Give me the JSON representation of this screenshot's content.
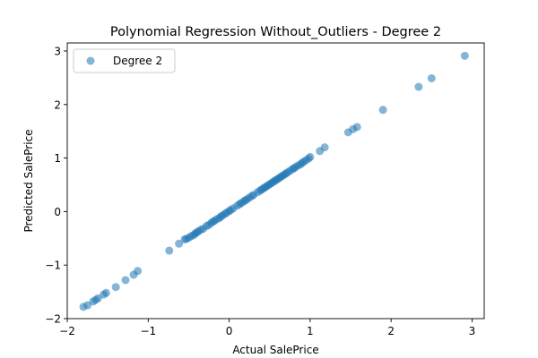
{
  "chart_data": {
    "type": "scatter",
    "title": "Polynomial Regression Without_Outliers - Degree 2",
    "xlabel": "Actual SalePrice",
    "ylabel": "Predicted SalePrice",
    "xlim": [
      -2.0,
      3.15
    ],
    "ylim": [
      -2.0,
      3.15
    ],
    "xticks": [
      -2,
      -1,
      0,
      1,
      2,
      3
    ],
    "yticks": [
      -2,
      -1,
      0,
      1,
      2,
      3
    ],
    "grid": false,
    "legend_position": "upper-left",
    "point_color": "#1f77b4",
    "point_alpha": 0.55,
    "series": [
      {
        "name": "Degree 2",
        "x": [
          -1.8,
          -1.75,
          -1.68,
          -1.65,
          -1.62,
          -1.55,
          -1.52,
          -1.4,
          -1.28,
          -1.18,
          -1.13,
          -0.74,
          -0.62,
          -0.55,
          -0.53,
          -0.5,
          -0.47,
          -0.44,
          -0.42,
          -0.4,
          -0.38,
          -0.35,
          -0.32,
          -0.28,
          -0.25,
          -0.22,
          -0.2,
          -0.18,
          -0.15,
          -0.12,
          -0.1,
          -0.08,
          -0.05,
          -0.03,
          0.0,
          0.02,
          0.05,
          0.1,
          0.13,
          0.15,
          0.18,
          0.2,
          0.22,
          0.25,
          0.28,
          0.3,
          0.35,
          0.38,
          0.4,
          0.42,
          0.44,
          0.46,
          0.48,
          0.5,
          0.52,
          0.54,
          0.56,
          0.58,
          0.6,
          0.62,
          0.64,
          0.66,
          0.68,
          0.7,
          0.72,
          0.75,
          0.78,
          0.8,
          0.82,
          0.85,
          0.88,
          0.9,
          0.92,
          0.95,
          0.98,
          1.0,
          1.12,
          1.18,
          1.47,
          1.53,
          1.58,
          1.9,
          2.34,
          2.5,
          2.91
        ],
        "y": [
          -1.78,
          -1.75,
          -1.68,
          -1.65,
          -1.62,
          -1.55,
          -1.52,
          -1.41,
          -1.28,
          -1.18,
          -1.11,
          -0.73,
          -0.6,
          -0.52,
          -0.51,
          -0.49,
          -0.46,
          -0.44,
          -0.41,
          -0.39,
          -0.37,
          -0.34,
          -0.32,
          -0.27,
          -0.25,
          -0.21,
          -0.19,
          -0.17,
          -0.14,
          -0.12,
          -0.09,
          -0.07,
          -0.04,
          -0.02,
          0.01,
          0.03,
          0.06,
          0.11,
          0.14,
          0.16,
          0.19,
          0.21,
          0.23,
          0.26,
          0.29,
          0.31,
          0.36,
          0.39,
          0.41,
          0.43,
          0.45,
          0.47,
          0.49,
          0.51,
          0.53,
          0.55,
          0.57,
          0.59,
          0.61,
          0.63,
          0.65,
          0.67,
          0.69,
          0.71,
          0.73,
          0.76,
          0.79,
          0.81,
          0.83,
          0.86,
          0.88,
          0.91,
          0.93,
          0.96,
          0.99,
          1.02,
          1.13,
          1.2,
          1.48,
          1.54,
          1.58,
          1.9,
          2.33,
          2.49,
          2.91
        ]
      }
    ]
  }
}
